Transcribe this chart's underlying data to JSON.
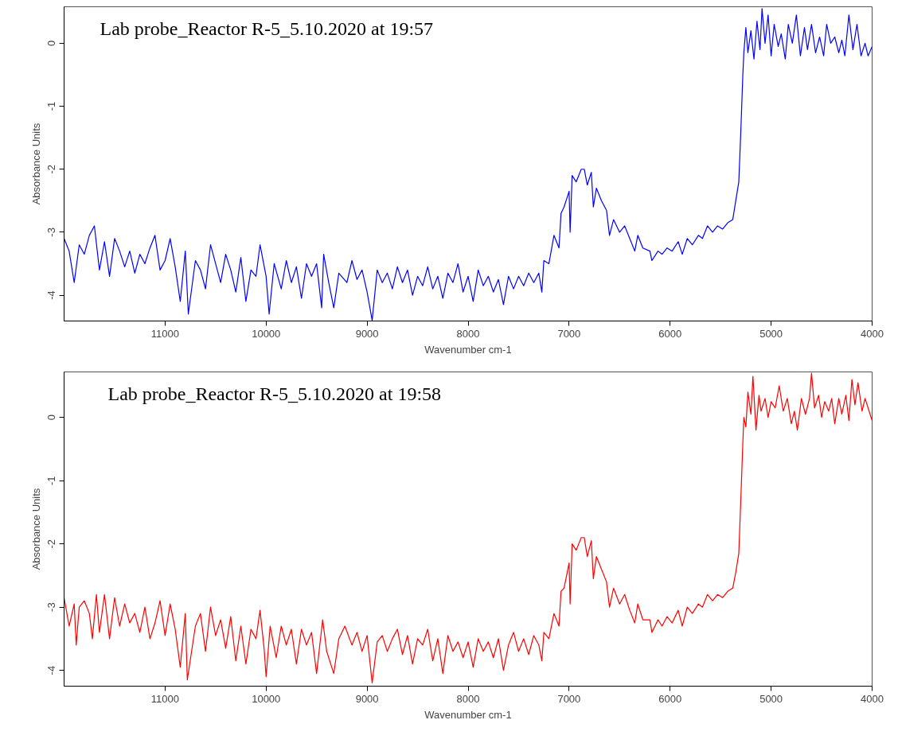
{
  "chart_data": [
    {
      "type": "line",
      "annotations": [
        "Lab probe_Reactor R-5_5.10.2020 at 19:57"
      ],
      "xlabel": "Wavenumber cm-1",
      "ylabel": "Absorbance Units",
      "xlim": [
        12000,
        4000
      ],
      "xticks": [
        11000,
        10000,
        9000,
        8000,
        7000,
        6000,
        5000,
        4000
      ],
      "ylim": [
        -4.41,
        0.58
      ],
      "yticks": [
        0,
        -1,
        -2,
        -3,
        -4
      ],
      "grid": false,
      "marker": "none",
      "line_style": "solid",
      "x": [
        12000,
        11950,
        11900,
        11850,
        11800,
        11750,
        11700,
        11650,
        11600,
        11550,
        11500,
        11450,
        11400,
        11350,
        11300,
        11250,
        11200,
        11150,
        11100,
        11050,
        11000,
        10950,
        10900,
        10850,
        10800,
        10770,
        10700,
        10650,
        10600,
        10550,
        10500,
        10450,
        10400,
        10350,
        10300,
        10250,
        10200,
        10150,
        10100,
        10060,
        10000,
        9970,
        9920,
        9850,
        9800,
        9750,
        9700,
        9650,
        9600,
        9550,
        9500,
        9450,
        9430,
        9380,
        9330,
        9280,
        9200,
        9150,
        9100,
        9050,
        9000,
        8950,
        8900,
        8850,
        8800,
        8750,
        8700,
        8650,
        8600,
        8550,
        8500,
        8450,
        8400,
        8350,
        8300,
        8250,
        8200,
        8150,
        8100,
        8050,
        8000,
        7950,
        7900,
        7850,
        7800,
        7750,
        7700,
        7650,
        7600,
        7550,
        7500,
        7450,
        7400,
        7350,
        7300,
        7270,
        7250,
        7200,
        7150,
        7100,
        7080,
        7050,
        7000,
        6990,
        6970,
        6930,
        6880,
        6850,
        6820,
        6780,
        6760,
        6730,
        6680,
        6630,
        6600,
        6560,
        6500,
        6450,
        6400,
        6350,
        6320,
        6270,
        6200,
        6180,
        6120,
        6080,
        6030,
        5980,
        5920,
        5880,
        5830,
        5780,
        5720,
        5680,
        5630,
        5580,
        5530,
        5480,
        5430,
        5380,
        5350,
        5320,
        5300,
        5280,
        5270,
        5250,
        5230,
        5200,
        5170,
        5140,
        5110,
        5090,
        5060,
        5030,
        5000,
        4970,
        4930,
        4900,
        4860,
        4830,
        4790,
        4750,
        4710,
        4670,
        4640,
        4600,
        4560,
        4520,
        4480,
        4450,
        4410,
        4370,
        4330,
        4300,
        4270,
        4230,
        4190,
        4150,
        4110,
        4070,
        4040,
        4000
      ],
      "series": [
        {
          "color": "#0000ff",
          "values": [
            -3.1,
            -3.3,
            -3.8,
            -3.2,
            -3.35,
            -3.05,
            -2.9,
            -3.6,
            -3.15,
            -3.7,
            -3.1,
            -3.3,
            -3.55,
            -3.3,
            -3.65,
            -3.35,
            -3.5,
            -3.25,
            -3.05,
            -3.6,
            -3.45,
            -3.1,
            -3.55,
            -4.1,
            -3.3,
            -4.3,
            -3.45,
            -3.6,
            -3.9,
            -3.2,
            -3.5,
            -3.8,
            -3.35,
            -3.6,
            -3.95,
            -3.4,
            -4.1,
            -3.6,
            -3.7,
            -3.2,
            -3.7,
            -4.3,
            -3.5,
            -3.9,
            -3.45,
            -3.8,
            -3.55,
            -4.05,
            -3.5,
            -3.7,
            -3.5,
            -4.2,
            -3.35,
            -3.8,
            -4.2,
            -3.65,
            -3.8,
            -3.45,
            -3.75,
            -3.6,
            -3.95,
            -4.4,
            -3.6,
            -3.8,
            -3.65,
            -3.9,
            -3.55,
            -3.8,
            -3.6,
            -4.0,
            -3.7,
            -3.85,
            -3.55,
            -3.9,
            -3.7,
            -4.05,
            -3.65,
            -3.8,
            -3.5,
            -3.95,
            -3.7,
            -4.1,
            -3.6,
            -3.85,
            -3.7,
            -3.95,
            -3.75,
            -4.15,
            -3.7,
            -3.9,
            -3.7,
            -3.85,
            -3.65,
            -3.8,
            -3.65,
            -3.95,
            -3.45,
            -3.5,
            -3.05,
            -3.25,
            -2.7,
            -2.6,
            -2.35,
            -3.0,
            -2.1,
            -2.2,
            -2.0,
            -2.0,
            -2.25,
            -2.05,
            -2.6,
            -2.3,
            -2.5,
            -2.65,
            -3.05,
            -2.8,
            -3.0,
            -2.9,
            -3.1,
            -3.3,
            -3.05,
            -3.25,
            -3.3,
            -3.45,
            -3.3,
            -3.35,
            -3.25,
            -3.3,
            -3.15,
            -3.35,
            -3.1,
            -3.2,
            -3.05,
            -3.1,
            -2.9,
            -3.0,
            -2.9,
            -2.95,
            -2.85,
            -2.8,
            -2.5,
            -2.2,
            -1.4,
            -0.5,
            -0.15,
            0.25,
            -0.15,
            0.2,
            -0.25,
            0.35,
            -0.1,
            0.55,
            0.0,
            0.45,
            -0.2,
            0.3,
            -0.05,
            0.15,
            -0.25,
            0.3,
            0.0,
            0.45,
            -0.2,
            0.25,
            -0.1,
            0.3,
            -0.15,
            0.1,
            -0.2,
            0.3,
            0.0,
            0.1,
            -0.15,
            0.05,
            -0.2,
            0.45,
            -0.1,
            0.3,
            -0.2,
            0.0,
            -0.2,
            -0.05
          ]
        }
      ]
    },
    {
      "type": "line",
      "annotations": [
        "Lab probe_Reactor R-5_5.10.2020 at 19:58"
      ],
      "xlabel": "Wavenumber cm-1",
      "ylabel": "Absorbance Units",
      "xlim": [
        12000,
        4000
      ],
      "xticks": [
        11000,
        10000,
        9000,
        8000,
        7000,
        6000,
        5000,
        4000
      ],
      "ylim": [
        -4.25,
        0.72
      ],
      "yticks": [
        0,
        -1,
        -2,
        -3,
        -4
      ],
      "grid": false,
      "marker": "none",
      "line_style": "solid",
      "x": [
        12000,
        11950,
        11900,
        11880,
        11850,
        11800,
        11750,
        11720,
        11680,
        11650,
        11600,
        11550,
        11500,
        11450,
        11400,
        11350,
        11300,
        11250,
        11200,
        11150,
        11100,
        11050,
        11000,
        10950,
        10900,
        10850,
        10800,
        10780,
        10700,
        10650,
        10600,
        10550,
        10500,
        10450,
        10400,
        10350,
        10300,
        10250,
        10200,
        10150,
        10100,
        10060,
        10020,
        10000,
        9960,
        9900,
        9850,
        9800,
        9750,
        9700,
        9650,
        9600,
        9550,
        9500,
        9440,
        9400,
        9330,
        9280,
        9220,
        9150,
        9100,
        9050,
        9000,
        8950,
        8900,
        8850,
        8800,
        8750,
        8700,
        8650,
        8600,
        8550,
        8500,
        8450,
        8400,
        8350,
        8300,
        8250,
        8200,
        8150,
        8100,
        8050,
        8000,
        7950,
        7900,
        7850,
        7800,
        7750,
        7700,
        7650,
        7600,
        7550,
        7500,
        7450,
        7400,
        7350,
        7300,
        7270,
        7250,
        7200,
        7150,
        7100,
        7080,
        7050,
        7000,
        6990,
        6970,
        6930,
        6880,
        6850,
        6820,
        6780,
        6760,
        6730,
        6680,
        6630,
        6600,
        6560,
        6500,
        6450,
        6400,
        6350,
        6320,
        6270,
        6200,
        6180,
        6120,
        6080,
        6030,
        5980,
        5920,
        5880,
        5830,
        5780,
        5720,
        5680,
        5630,
        5580,
        5530,
        5480,
        5430,
        5380,
        5350,
        5320,
        5300,
        5280,
        5270,
        5250,
        5230,
        5200,
        5180,
        5150,
        5120,
        5100,
        5060,
        5030,
        5000,
        4960,
        4920,
        4880,
        4840,
        4800,
        4770,
        4740,
        4700,
        4660,
        4620,
        4600,
        4570,
        4530,
        4500,
        4470,
        4430,
        4400,
        4370,
        4330,
        4300,
        4260,
        4230,
        4200,
        4170,
        4140,
        4100,
        4070,
        4040,
        4000
      ],
      "series": [
        {
          "color": "#ff0000",
          "values": [
            -2.85,
            -3.3,
            -2.95,
            -3.6,
            -3.0,
            -2.9,
            -3.1,
            -3.5,
            -2.8,
            -3.4,
            -2.8,
            -3.5,
            -2.85,
            -3.3,
            -2.95,
            -3.25,
            -3.1,
            -3.4,
            -3.0,
            -3.5,
            -3.25,
            -2.9,
            -3.45,
            -2.95,
            -3.35,
            -3.95,
            -3.1,
            -4.15,
            -3.3,
            -3.1,
            -3.7,
            -3.0,
            -3.45,
            -3.2,
            -3.65,
            -3.15,
            -3.85,
            -3.3,
            -3.9,
            -3.35,
            -3.5,
            -3.05,
            -3.65,
            -4.1,
            -3.3,
            -3.8,
            -3.3,
            -3.6,
            -3.35,
            -3.9,
            -3.35,
            -3.6,
            -3.4,
            -4.05,
            -3.2,
            -3.7,
            -4.05,
            -3.5,
            -3.3,
            -3.6,
            -3.4,
            -3.7,
            -3.45,
            -4.2,
            -3.55,
            -3.45,
            -3.7,
            -3.5,
            -3.35,
            -3.75,
            -3.45,
            -3.9,
            -3.5,
            -3.6,
            -3.35,
            -3.85,
            -3.5,
            -4.05,
            -3.45,
            -3.7,
            -3.55,
            -3.8,
            -3.55,
            -3.95,
            -3.5,
            -3.7,
            -3.55,
            -3.8,
            -3.5,
            -4.0,
            -3.6,
            -3.4,
            -3.7,
            -3.5,
            -3.75,
            -3.45,
            -3.6,
            -3.85,
            -3.4,
            -3.5,
            -3.1,
            -3.3,
            -2.75,
            -2.7,
            -2.3,
            -2.95,
            -2.0,
            -2.1,
            -1.9,
            -1.9,
            -2.2,
            -1.95,
            -2.55,
            -2.2,
            -2.4,
            -2.6,
            -3.0,
            -2.7,
            -2.95,
            -2.8,
            -3.05,
            -3.25,
            -2.95,
            -3.2,
            -3.2,
            -3.4,
            -3.2,
            -3.3,
            -3.15,
            -3.25,
            -3.05,
            -3.3,
            -3.0,
            -3.1,
            -2.95,
            -3.0,
            -2.8,
            -2.9,
            -2.8,
            -2.85,
            -2.75,
            -2.7,
            -2.45,
            -2.15,
            -1.3,
            -0.4,
            0.0,
            -0.15,
            0.4,
            0.05,
            0.65,
            -0.2,
            0.35,
            0.1,
            0.3,
            0.0,
            0.25,
            0.15,
            0.5,
            0.1,
            0.3,
            -0.1,
            0.1,
            -0.2,
            0.3,
            0.05,
            0.3,
            0.7,
            0.15,
            0.35,
            0.0,
            0.25,
            0.1,
            0.3,
            -0.1,
            0.3,
            0.05,
            0.35,
            -0.05,
            0.6,
            0.2,
            0.55,
            0.1,
            0.3,
            0.15,
            -0.05
          ]
        }
      ]
    }
  ]
}
